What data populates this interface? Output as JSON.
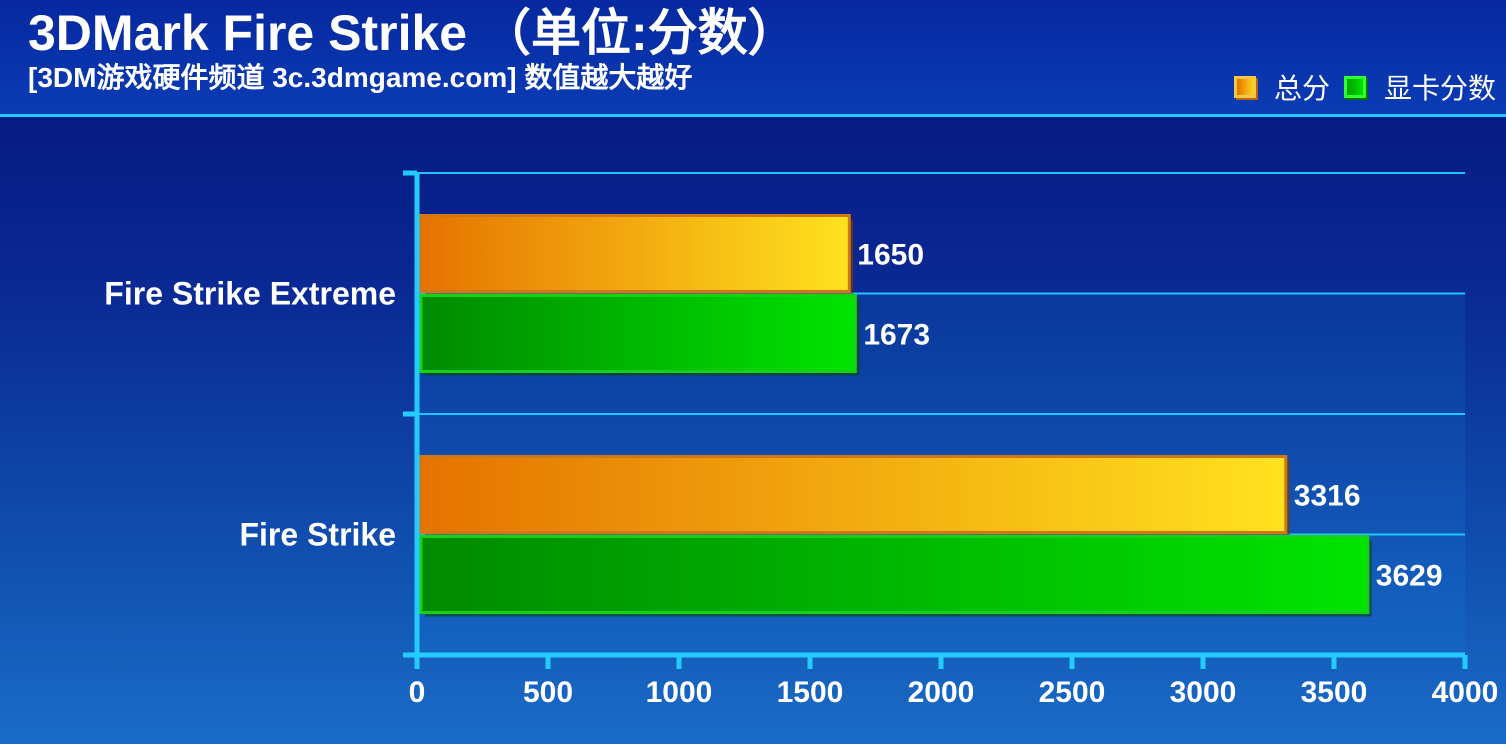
{
  "header": {
    "title": "3DMark Fire Strike （单位:分数）",
    "subtitle": "[3DM游戏硬件频道 3c.3dmgame.com] 数值越大越好"
  },
  "legend": {
    "items": [
      {
        "label": "总分",
        "color": "#f0a010"
      },
      {
        "label": "显卡分数",
        "color": "#00c800"
      }
    ]
  },
  "chart_data": {
    "type": "bar",
    "orientation": "horizontal",
    "title": "3DMark Fire Strike （单位:分数）",
    "subtitle": "[3DM游戏硬件频道 3c.3dmgame.com] 数值越大越好",
    "categories": [
      "Fire Strike Extreme",
      "Fire Strike"
    ],
    "series": [
      {
        "name": "总分",
        "values": [
          1650,
          3316
        ],
        "color": "#f0a010"
      },
      {
        "name": "显卡分数",
        "values": [
          1673,
          3629
        ],
        "color": "#00c800"
      }
    ],
    "xlim": [
      0,
      4000
    ],
    "xticks": [
      0,
      500,
      1000,
      1500,
      2000,
      2500,
      3000,
      3500,
      4000
    ],
    "grid": true,
    "legend_position": "top-right",
    "data_labels": true
  }
}
